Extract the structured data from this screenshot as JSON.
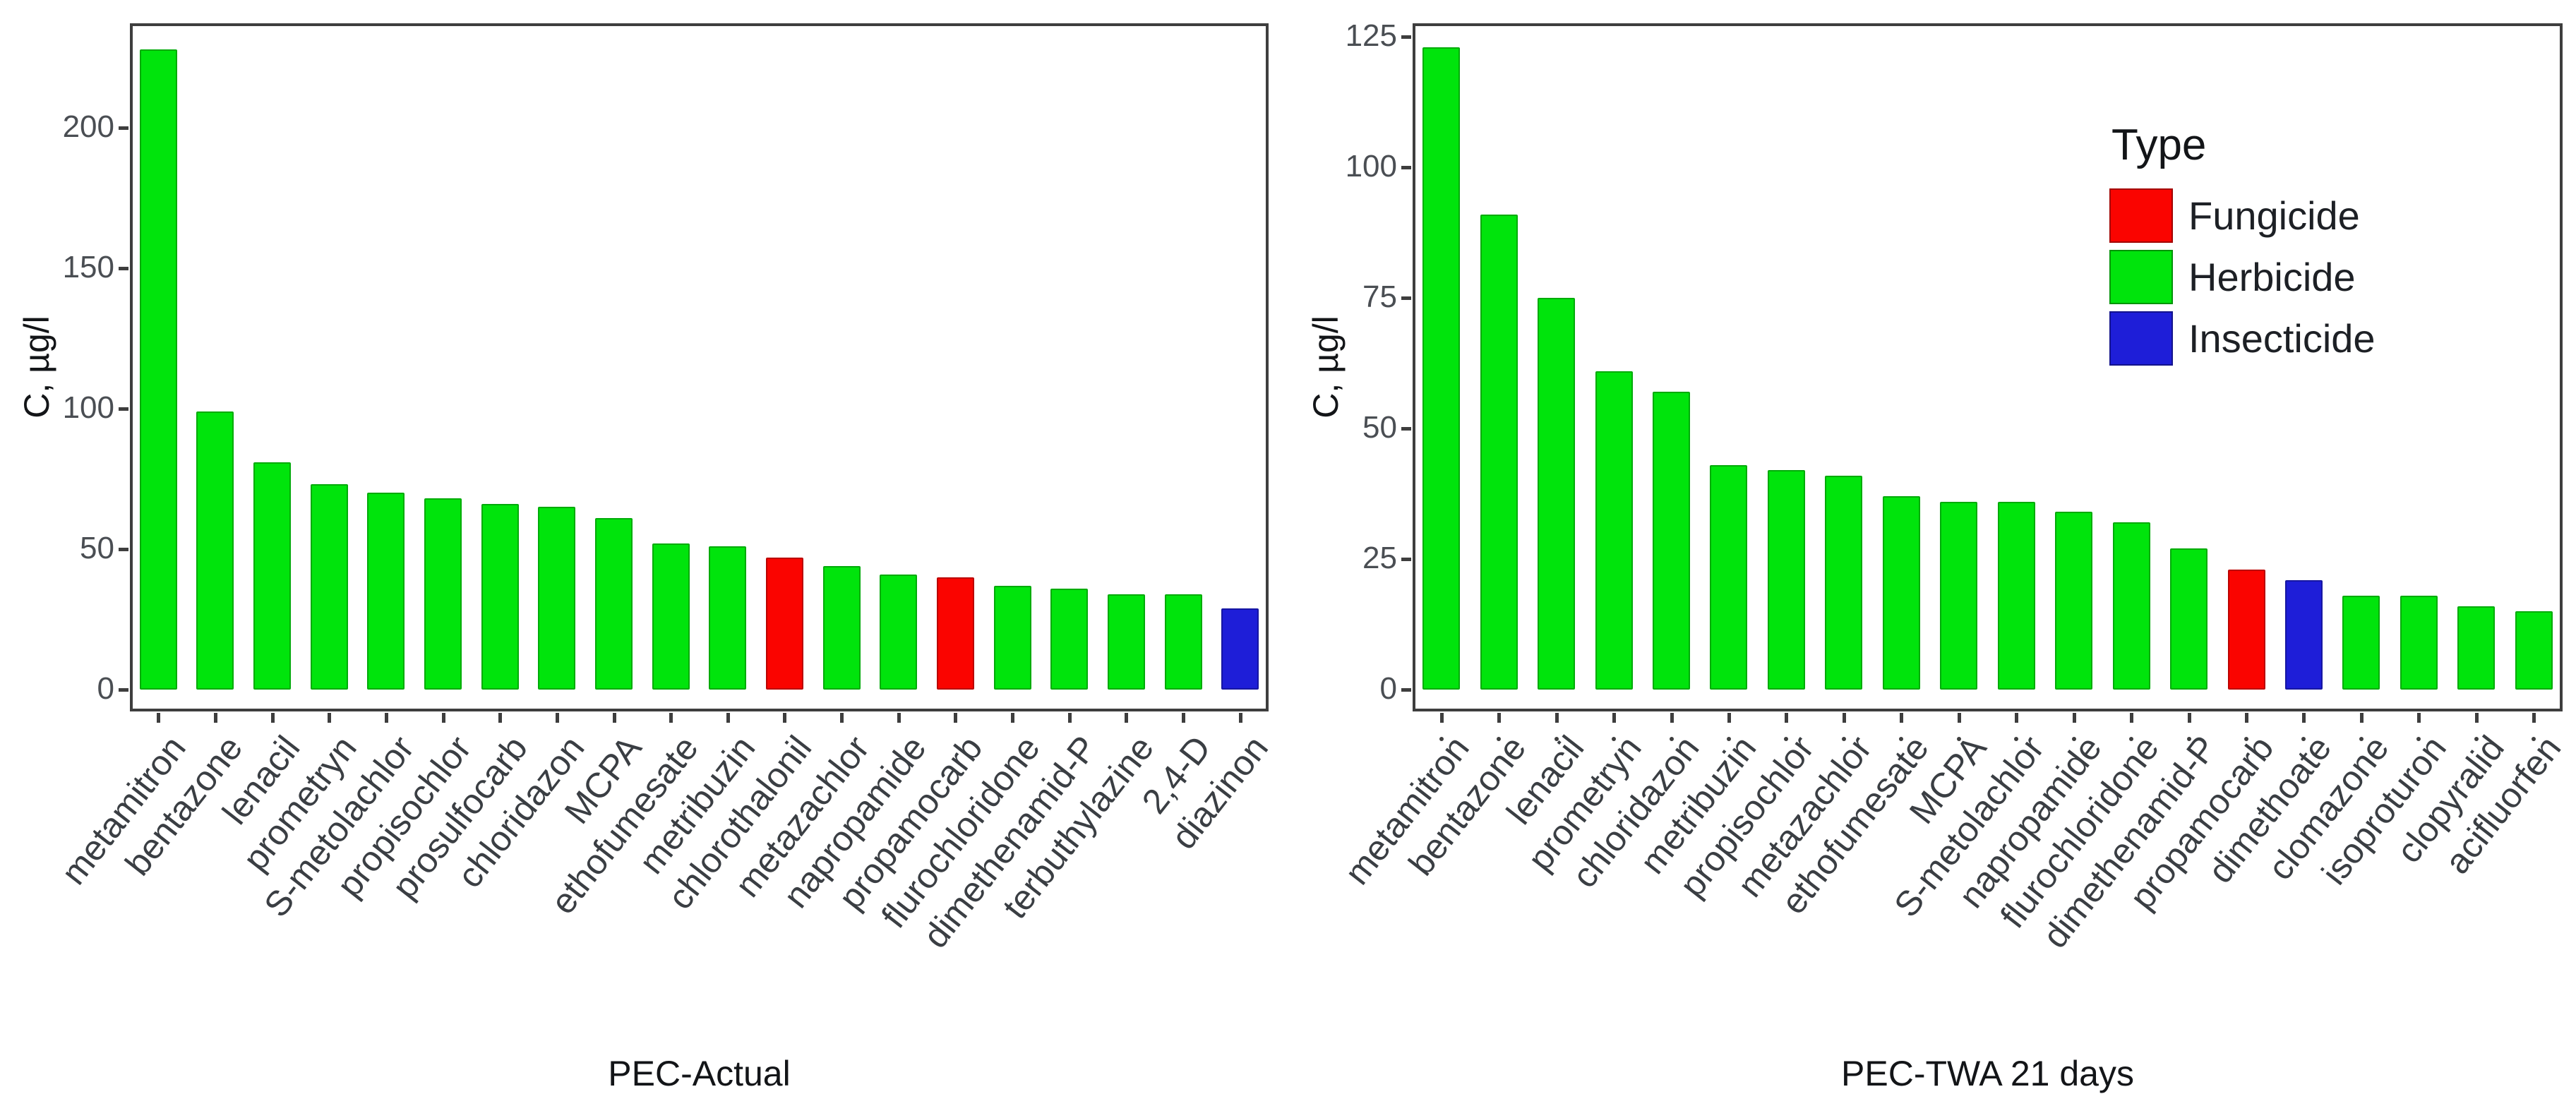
{
  "figure": {
    "background": "#ffffff"
  },
  "type_colors": {
    "Fungicide": "#FA0400",
    "Herbicide": "#00E40C",
    "Insecticide": "#1E1ED8"
  },
  "chart_data": [
    {
      "type": "bar",
      "title": "",
      "xlabel": "PEC-Actual",
      "ylabel": "C, µg/l",
      "ylim": [
        0,
        240
      ],
      "yticks": [
        0,
        50,
        100,
        150,
        200
      ],
      "grid": false,
      "legend_position": "none",
      "categories": [
        "metamitron",
        "bentazone",
        "lenacil",
        "prometryn",
        "S-metolachlor",
        "propisochlor",
        "prosulfocarb",
        "chloridazon",
        "MCPA",
        "ethofumesate",
        "metribuzin",
        "chlorothalonil",
        "metazachlor",
        "napropamide",
        "propamocarb",
        "flurochloridone",
        "dimethenamid-P",
        "terbuthylazine",
        "2,4-D",
        "diazinon"
      ],
      "values": [
        228,
        99,
        81,
        73,
        70,
        68,
        66,
        65,
        61,
        52,
        51,
        47,
        44,
        41,
        40,
        37,
        36,
        34,
        34,
        29
      ],
      "bar_types": [
        "Herbicide",
        "Herbicide",
        "Herbicide",
        "Herbicide",
        "Herbicide",
        "Herbicide",
        "Herbicide",
        "Herbicide",
        "Herbicide",
        "Herbicide",
        "Herbicide",
        "Fungicide",
        "Herbicide",
        "Herbicide",
        "Fungicide",
        "Herbicide",
        "Herbicide",
        "Herbicide",
        "Herbicide",
        "Insecticide"
      ]
    },
    {
      "type": "bar",
      "title": "",
      "xlabel": "PEC-TWA 21 days",
      "ylabel": "C, µg/l",
      "ylim": [
        0,
        130
      ],
      "yticks": [
        0,
        25,
        50,
        75,
        100,
        125
      ],
      "grid": false,
      "legend_position": "inside-top-right",
      "legend": {
        "title": "Type",
        "entries": [
          {
            "label": "Fungicide",
            "color": "#FA0400"
          },
          {
            "label": "Herbicide",
            "color": "#00E40C"
          },
          {
            "label": "Insecticide",
            "color": "#1E1ED8"
          }
        ]
      },
      "categories": [
        "metamitron",
        "bentazone",
        "lenacil",
        "prometryn",
        "chloridazon",
        "metribuzin",
        "propisochlor",
        "metazachlor",
        "ethofumesate",
        "MCPA",
        "S-metolachlor",
        "napropamide",
        "flurochloridone",
        "dimethenamid-P",
        "propamocarb",
        "dimethoate",
        "clomazone",
        "isoproturon",
        "clopyralid",
        "acifluorfen"
      ],
      "values": [
        123,
        91,
        75,
        61,
        57,
        43,
        42,
        41,
        37,
        36,
        36,
        34,
        32,
        27,
        23,
        21,
        18,
        18,
        16,
        15
      ],
      "bar_types": [
        "Herbicide",
        "Herbicide",
        "Herbicide",
        "Herbicide",
        "Herbicide",
        "Herbicide",
        "Herbicide",
        "Herbicide",
        "Herbicide",
        "Herbicide",
        "Herbicide",
        "Herbicide",
        "Herbicide",
        "Herbicide",
        "Fungicide",
        "Insecticide",
        "Herbicide",
        "Herbicide",
        "Herbicide",
        "Herbicide"
      ]
    }
  ]
}
